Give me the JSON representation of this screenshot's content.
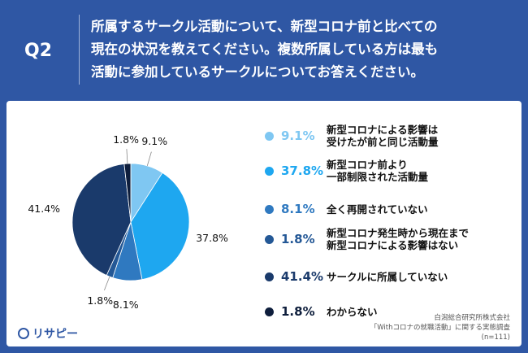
{
  "header": {
    "badge": "Q2",
    "question_lines": [
      "所属するサークル活動について、新型コロナ前と比べての",
      "現在の状況を教えてください。複数所属している方は最も",
      "活動に参加しているサークルについてお答えください。"
    ]
  },
  "chart_data": {
    "type": "pie",
    "title": "所属するサークル活動について、新型コロナ前と比べての現在の状況を教えてください。複数所属している方は最も活動に参加しているサークルについてお答えください。",
    "categories": [
      "新型コロナによる影響は受けたが前と同じ活動量",
      "新型コロナ前より一部制限された活動量",
      "全く再開されていない",
      "新型コロナ発生時から現在まで新型コロナによる影響はない",
      "サークルに所属していない",
      "わからない"
    ],
    "values": [
      9.1,
      37.8,
      8.1,
      1.8,
      41.4,
      1.8
    ],
    "labels": [
      "9.1%",
      "37.8%",
      "8.1%",
      "1.8%",
      "41.4%",
      "1.8%"
    ],
    "colors": [
      "#7fc7f2",
      "#1ea7f0",
      "#2f79c0",
      "#245896",
      "#1a3a6b",
      "#0e1e3c"
    ],
    "unit": "%"
  },
  "legend": [
    {
      "pct": "9.1%",
      "lines": [
        "新型コロナによる影響は",
        "受けたが前と同じ活動量"
      ],
      "color": "#7fc7f2"
    },
    {
      "pct": "37.8%",
      "lines": [
        "新型コロナ前より",
        "一部制限された活動量"
      ],
      "color": "#1ea7f0"
    },
    {
      "pct": "8.1%",
      "lines": [
        "全く再開されていない"
      ],
      "color": "#2f79c0"
    },
    {
      "pct": "1.8%",
      "lines": [
        "新型コロナ発生時から現在まで",
        "新型コロナによる影響はない"
      ],
      "color": "#245896"
    },
    {
      "pct": "41.4%",
      "lines": [
        "サークルに所属していない"
      ],
      "color": "#1a3a6b"
    },
    {
      "pct": "1.8%",
      "lines": [
        "わからない"
      ],
      "color": "#0e1e3c"
    }
  ],
  "source": {
    "org": "白潟総合研究所株式会社",
    "survey": "「Withコロナの就職活動」に関する実態調査",
    "n": "(n=111)"
  },
  "logo": {
    "text": "リサピー"
  }
}
